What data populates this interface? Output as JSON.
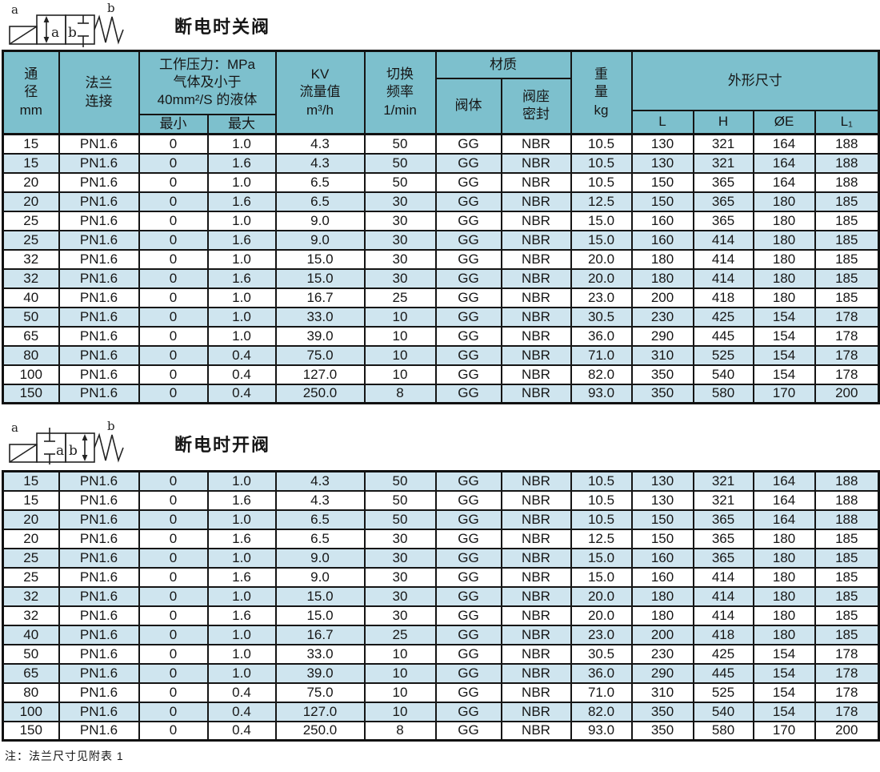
{
  "section1": {
    "title": "断电时关阀",
    "symbol": {
      "coil_label": "a",
      "box1_letter": "a",
      "box2_letter": "b",
      "spring_label": "b"
    }
  },
  "section2": {
    "title": "断电时开阀",
    "symbol": {
      "coil_label": "a",
      "box1_letter": "a",
      "box2_letter": "b",
      "spring_label": "b"
    }
  },
  "note": "注：法兰尺寸见附表 1",
  "colors": {
    "header_bg": "#7dc0cd",
    "alt_row_bg": "#cfe5ef",
    "border": "#151515"
  },
  "header": {
    "diameter": [
      "通",
      "径",
      "mm"
    ],
    "flange": [
      "法兰",
      "连接"
    ],
    "pressure_group": [
      "工作压力：MPa",
      "气体及小于",
      "40mm²/S 的液体"
    ],
    "pressure_min": "最小",
    "pressure_max": "最大",
    "kv": [
      "KV",
      "流量值",
      "m³/h"
    ],
    "frequency": [
      "切换",
      "频率",
      "1/min"
    ],
    "material_group": "材质",
    "material_body": "阀体",
    "material_seat": [
      "阀座",
      "密封"
    ],
    "weight": [
      "重",
      "量",
      "kg"
    ],
    "dimensions_group": "外形尺寸",
    "dim_l": "L",
    "dim_h": "H",
    "dim_oe": "ØE",
    "dim_l1": "L₁"
  },
  "table1": {
    "alt_start": false,
    "rows": [
      [
        "15",
        "PN1.6",
        "0",
        "1.0",
        "4.3",
        "50",
        "GG",
        "NBR",
        "10.5",
        "130",
        "321",
        "164",
        "188"
      ],
      [
        "15",
        "PN1.6",
        "0",
        "1.6",
        "4.3",
        "50",
        "GG",
        "NBR",
        "10.5",
        "130",
        "321",
        "164",
        "188"
      ],
      [
        "20",
        "PN1.6",
        "0",
        "1.0",
        "6.5",
        "50",
        "GG",
        "NBR",
        "10.5",
        "150",
        "365",
        "164",
        "188"
      ],
      [
        "20",
        "PN1.6",
        "0",
        "1.6",
        "6.5",
        "30",
        "GG",
        "NBR",
        "12.5",
        "150",
        "365",
        "180",
        "185"
      ],
      [
        "25",
        "PN1.6",
        "0",
        "1.0",
        "9.0",
        "30",
        "GG",
        "NBR",
        "15.0",
        "160",
        "365",
        "180",
        "185"
      ],
      [
        "25",
        "PN1.6",
        "0",
        "1.6",
        "9.0",
        "30",
        "GG",
        "NBR",
        "15.0",
        "160",
        "414",
        "180",
        "185"
      ],
      [
        "32",
        "PN1.6",
        "0",
        "1.0",
        "15.0",
        "30",
        "GG",
        "NBR",
        "20.0",
        "180",
        "414",
        "180",
        "185"
      ],
      [
        "32",
        "PN1.6",
        "0",
        "1.6",
        "15.0",
        "30",
        "GG",
        "NBR",
        "20.0",
        "180",
        "414",
        "180",
        "185"
      ],
      [
        "40",
        "PN1.6",
        "0",
        "1.0",
        "16.7",
        "25",
        "GG",
        "NBR",
        "23.0",
        "200",
        "418",
        "180",
        "185"
      ],
      [
        "50",
        "PN1.6",
        "0",
        "1.0",
        "33.0",
        "10",
        "GG",
        "NBR",
        "30.5",
        "230",
        "425",
        "154",
        "178"
      ],
      [
        "65",
        "PN1.6",
        "0",
        "1.0",
        "39.0",
        "10",
        "GG",
        "NBR",
        "36.0",
        "290",
        "445",
        "154",
        "178"
      ],
      [
        "80",
        "PN1.6",
        "0",
        "0.4",
        "75.0",
        "10",
        "GG",
        "NBR",
        "71.0",
        "310",
        "525",
        "154",
        "178"
      ],
      [
        "100",
        "PN1.6",
        "0",
        "0.4",
        "127.0",
        "10",
        "GG",
        "NBR",
        "82.0",
        "350",
        "540",
        "154",
        "178"
      ],
      [
        "150",
        "PN1.6",
        "0",
        "0.4",
        "250.0",
        "8",
        "GG",
        "NBR",
        "93.0",
        "350",
        "580",
        "170",
        "200"
      ]
    ]
  },
  "table2": {
    "alt_start": true,
    "rows": [
      [
        "15",
        "PN1.6",
        "0",
        "1.0",
        "4.3",
        "50",
        "GG",
        "NBR",
        "10.5",
        "130",
        "321",
        "164",
        "188"
      ],
      [
        "15",
        "PN1.6",
        "0",
        "1.6",
        "4.3",
        "50",
        "GG",
        "NBR",
        "10.5",
        "130",
        "321",
        "164",
        "188"
      ],
      [
        "20",
        "PN1.6",
        "0",
        "1.0",
        "6.5",
        "50",
        "GG",
        "NBR",
        "10.5",
        "150",
        "365",
        "164",
        "188"
      ],
      [
        "20",
        "PN1.6",
        "0",
        "1.6",
        "6.5",
        "30",
        "GG",
        "NBR",
        "12.5",
        "150",
        "365",
        "180",
        "185"
      ],
      [
        "25",
        "PN1.6",
        "0",
        "1.0",
        "9.0",
        "30",
        "GG",
        "NBR",
        "15.0",
        "160",
        "365",
        "180",
        "185"
      ],
      [
        "25",
        "PN1.6",
        "0",
        "1.6",
        "9.0",
        "30",
        "GG",
        "NBR",
        "15.0",
        "160",
        "414",
        "180",
        "185"
      ],
      [
        "32",
        "PN1.6",
        "0",
        "1.0",
        "15.0",
        "30",
        "GG",
        "NBR",
        "20.0",
        "180",
        "414",
        "180",
        "185"
      ],
      [
        "32",
        "PN1.6",
        "0",
        "1.6",
        "15.0",
        "30",
        "GG",
        "NBR",
        "20.0",
        "180",
        "414",
        "180",
        "185"
      ],
      [
        "40",
        "PN1.6",
        "0",
        "1.0",
        "16.7",
        "25",
        "GG",
        "NBR",
        "23.0",
        "200",
        "418",
        "180",
        "185"
      ],
      [
        "50",
        "PN1.6",
        "0",
        "1.0",
        "33.0",
        "10",
        "GG",
        "NBR",
        "30.5",
        "230",
        "425",
        "154",
        "178"
      ],
      [
        "65",
        "PN1.6",
        "0",
        "1.0",
        "39.0",
        "10",
        "GG",
        "NBR",
        "36.0",
        "290",
        "445",
        "154",
        "178"
      ],
      [
        "80",
        "PN1.6",
        "0",
        "0.4",
        "75.0",
        "10",
        "GG",
        "NBR",
        "71.0",
        "310",
        "525",
        "154",
        "178"
      ],
      [
        "100",
        "PN1.6",
        "0",
        "0.4",
        "127.0",
        "10",
        "GG",
        "NBR",
        "82.0",
        "350",
        "540",
        "154",
        "178"
      ],
      [
        "150",
        "PN1.6",
        "0",
        "0.4",
        "250.0",
        "8",
        "GG",
        "NBR",
        "93.0",
        "350",
        "580",
        "170",
        "200"
      ]
    ]
  }
}
